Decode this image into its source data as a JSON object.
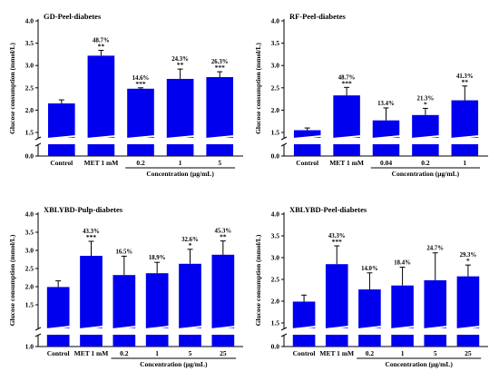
{
  "colors": {
    "bar": "#0000EE",
    "axis": "#000000"
  },
  "chart_data": [
    {
      "type": "bar",
      "title": "GD-Peel-diabetes",
      "ylabel": "Glucose consumption (mmol/L)",
      "xlabel": "Concentration (μg/mL)",
      "categories": [
        "Control",
        "MET 1 mM",
        "0.2",
        "1",
        "5"
      ],
      "values": [
        2.15,
        3.22,
        2.48,
        2.7,
        2.74
      ],
      "errors": [
        0.08,
        0.12,
        0.02,
        0.22,
        0.12
      ],
      "annotations": [
        "",
        "48.7%",
        "14.6%",
        "24.3%",
        "26.3%"
      ],
      "significance": [
        "",
        "**",
        "***",
        "**",
        "***"
      ],
      "yticks": [
        "0.0",
        "1.5",
        "2.0",
        "2.5",
        "3.0",
        "3.5",
        "4.0"
      ],
      "ylim": [
        0,
        4.0
      ],
      "axis_break": [
        0.0,
        1.5
      ],
      "concentration_span": [
        2,
        4
      ]
    },
    {
      "type": "bar",
      "title": "RF-Peel-diabetes",
      "ylabel": "Glucose consumption (mmol/L)",
      "xlabel": "Concentration (μg/mL)",
      "categories": [
        "Control",
        "MET 1 mM",
        "0.04",
        "0.2",
        "1"
      ],
      "values": [
        1.55,
        2.33,
        1.77,
        1.89,
        2.22
      ],
      "errors": [
        0.05,
        0.18,
        0.28,
        0.15,
        0.32
      ],
      "annotations": [
        "",
        "48.7%",
        "13.4%",
        "21.3%",
        "41.3%"
      ],
      "significance": [
        "",
        "***",
        "",
        "*",
        "**"
      ],
      "yticks": [
        "0.0",
        "1.5",
        "2.0",
        "2.5",
        "3.0",
        "3.5",
        "4.0"
      ],
      "ylim": [
        0,
        4.0
      ],
      "axis_break": [
        0.0,
        1.5
      ],
      "concentration_span": [
        2,
        4
      ]
    },
    {
      "type": "bar",
      "title": "XBLYBD-Pulp-diabetes",
      "ylabel": "Glucose consumption (mmol/L)",
      "xlabel": "Concentration (μg/mL)",
      "categories": [
        "Control",
        "MET 1 mM",
        "0.2",
        "1",
        "5",
        "25"
      ],
      "values": [
        1.99,
        2.85,
        2.32,
        2.37,
        2.63,
        2.88
      ],
      "errors": [
        0.17,
        0.4,
        0.52,
        0.3,
        0.4,
        0.38
      ],
      "annotations": [
        "",
        "43.3%",
        "16.5%",
        "18.9%",
        "32.6%",
        "45.3%"
      ],
      "significance": [
        "",
        "***",
        "",
        "",
        "*",
        "**"
      ],
      "yticks": [
        "1.0",
        "1.5",
        "2.0",
        "2.5",
        "3.0",
        "3.5",
        "4.0"
      ],
      "ylim": [
        0,
        4.0
      ],
      "axis_break": [
        0.0,
        1.0
      ],
      "concentration_span": [
        2,
        5
      ]
    },
    {
      "type": "bar",
      "title": "XBLYBD-Peel-diabetes",
      "ylabel": "Glucose consumption (mmol/L)",
      "xlabel": "Concentration (μg/mL)",
      "categories": [
        "Control",
        "MET 1 mM",
        "0.2",
        "1",
        "5",
        "25"
      ],
      "values": [
        1.99,
        2.85,
        2.27,
        2.36,
        2.48,
        2.57
      ],
      "errors": [
        0.15,
        0.42,
        0.38,
        0.42,
        0.63,
        0.26
      ],
      "annotations": [
        "",
        "43.3%",
        "14.0%",
        "18.4%",
        "24.7%",
        "29.3%"
      ],
      "significance": [
        "",
        "***",
        "",
        "",
        "",
        "*"
      ],
      "yticks": [
        "0.0",
        "1.5",
        "2.0",
        "2.5",
        "3.0",
        "3.5",
        "4.0"
      ],
      "ylim": [
        0,
        4.0
      ],
      "axis_break": [
        0.0,
        1.5
      ],
      "concentration_span": [
        2,
        5
      ]
    }
  ]
}
